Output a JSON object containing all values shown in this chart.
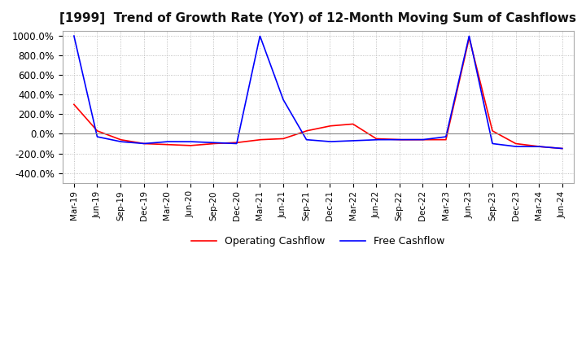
{
  "title": "[1999]  Trend of Growth Rate (YoY) of 12-Month Moving Sum of Cashflows",
  "ylim": [
    -500,
    1050
  ],
  "yticks": [
    -400,
    -200,
    0,
    200,
    400,
    600,
    800,
    1000
  ],
  "ytick_labels": [
    "-400.0%",
    "-200.0%",
    "0.0%",
    "200.0%",
    "400.0%",
    "600.0%",
    "800.0%",
    "1000.0%"
  ],
  "legend_labels": [
    "Operating Cashflow",
    "Free Cashflow"
  ],
  "line_colors": [
    "#ff0000",
    "#0000ff"
  ],
  "background_color": "#ffffff",
  "grid_color": "#b0b0b0",
  "x_labels": [
    "Mar-19",
    "Jun-19",
    "Sep-19",
    "Dec-19",
    "Mar-20",
    "Jun-20",
    "Sep-20",
    "Dec-20",
    "Mar-21",
    "Jun-21",
    "Sep-21",
    "Dec-21",
    "Mar-22",
    "Jun-22",
    "Sep-22",
    "Dec-22",
    "Mar-23",
    "Jun-23",
    "Sep-23",
    "Dec-23",
    "Mar-24",
    "Jun-24"
  ],
  "operating_cashflow": [
    300,
    30,
    -60,
    -100,
    -110,
    -120,
    -100,
    -90,
    -60,
    -50,
    30,
    80,
    100,
    -50,
    -60,
    -60,
    -60,
    980,
    30,
    -100,
    -130,
    -150
  ],
  "free_cashflow": [
    1000,
    -30,
    -80,
    -100,
    -80,
    -80,
    -90,
    -100,
    1000,
    350,
    -60,
    -80,
    -70,
    -60,
    -60,
    -60,
    -30,
    1000,
    -100,
    -130,
    -130,
    -150
  ]
}
